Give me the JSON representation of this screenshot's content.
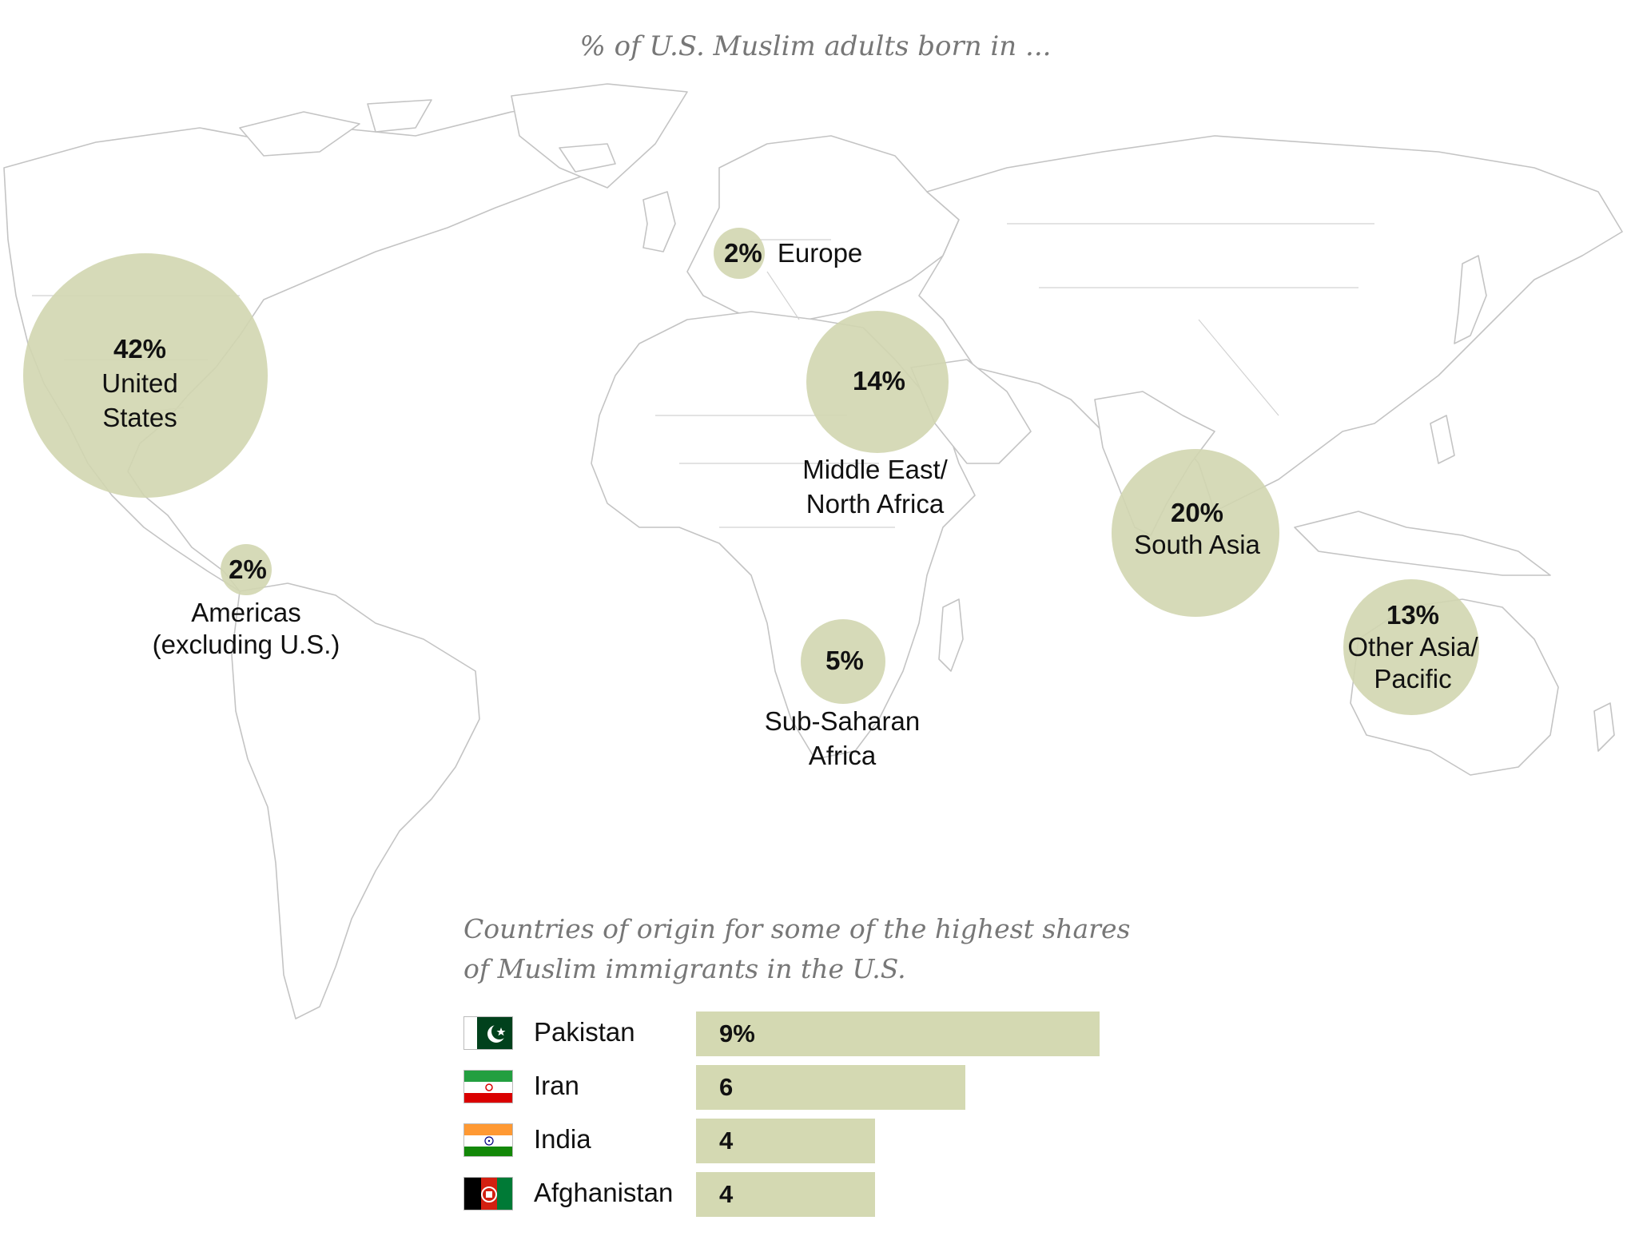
{
  "title": "% of U.S. Muslim adults born in ...",
  "regions": [
    {
      "id": "us",
      "value": "42%",
      "label_lines": [
        "United",
        "States"
      ]
    },
    {
      "id": "europe",
      "value": "2%",
      "label_lines": [
        "Europe"
      ]
    },
    {
      "id": "mena",
      "value": "14%",
      "label_lines": [
        "Middle East/",
        "North Africa"
      ]
    },
    {
      "id": "americas",
      "value": "2%",
      "label_lines": [
        "Americas",
        "(excluding U.S.)"
      ]
    },
    {
      "id": "ssa",
      "value": "5%",
      "label_lines": [
        "Sub-Saharan",
        "Africa"
      ]
    },
    {
      "id": "southasia",
      "value": "20%",
      "label_lines": [
        "South Asia"
      ]
    },
    {
      "id": "otherasia",
      "value": "13%",
      "label_lines": [
        "Other Asia/",
        "Pacific"
      ]
    }
  ],
  "subtitle_lines": [
    "Countries of origin for some of the highest shares",
    "of Muslim immigrants in the U.S."
  ],
  "chart_data": {
    "type": "bar",
    "categories": [
      "Pakistan",
      "Iran",
      "India",
      "Afghanistan"
    ],
    "values": [
      9,
      6,
      4,
      4
    ],
    "value_labels": [
      "9%",
      "6",
      "4",
      "4"
    ],
    "bar_color": "#d4d9b2"
  },
  "flags": [
    {
      "country": "Pakistan",
      "icon": "pakistan-flag-icon"
    },
    {
      "country": "Iran",
      "icon": "iran-flag-icon"
    },
    {
      "country": "India",
      "icon": "india-flag-icon"
    },
    {
      "country": "Afghanistan",
      "icon": "afghanistan-flag-icon"
    }
  ],
  "colors": {
    "bubble": "#d2d6b0",
    "map_line": "#c4c4c4",
    "title": "#777777"
  }
}
